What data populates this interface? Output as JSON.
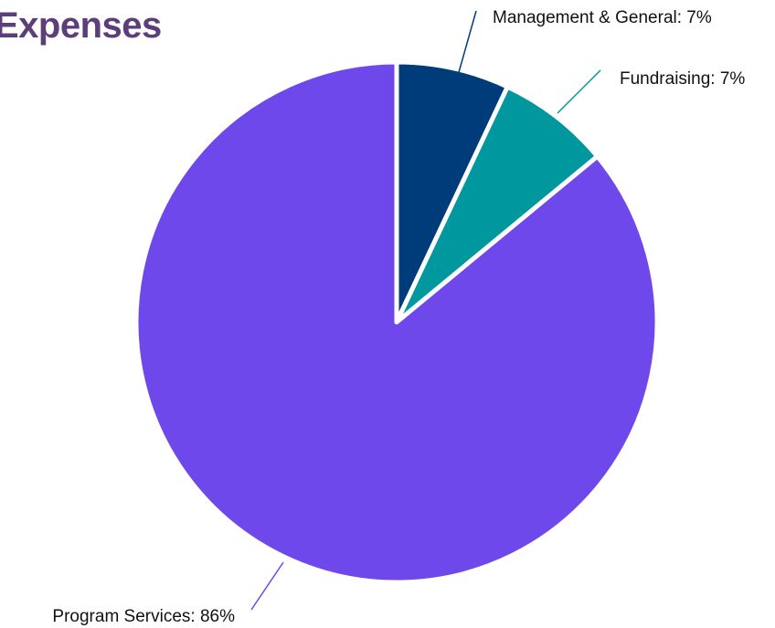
{
  "chart_data": {
    "type": "pie",
    "title": "Expenses",
    "slices": [
      {
        "label": "Management & General",
        "value": 7,
        "color": "#003b7a",
        "text": "Management & General: 7%"
      },
      {
        "label": "Fundraising",
        "value": 7,
        "color": "#00979f",
        "text": "Fundraising: 7%"
      },
      {
        "label": "Program Services",
        "value": 86,
        "color": "#6f48eb",
        "text": "Program Services: 86%"
      }
    ],
    "unit": "%",
    "legend": "none"
  }
}
